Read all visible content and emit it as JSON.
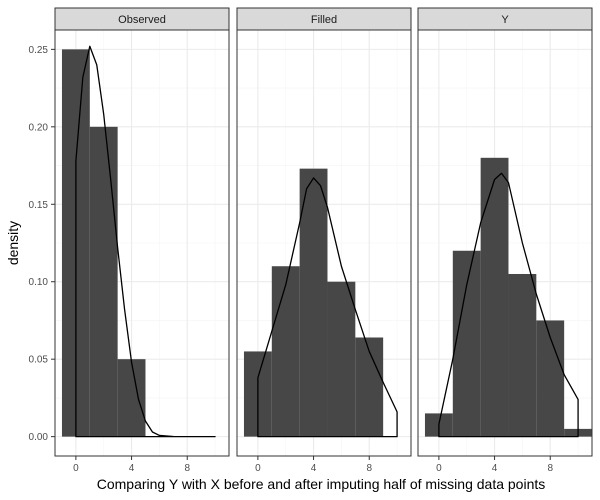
{
  "chart_data": {
    "type": "histogram",
    "title": "",
    "xlabel": "Comparing Y with X before and after imputing half of missing data points",
    "ylabel": "density",
    "xlim": [
      -1.5,
      11.0
    ],
    "ylim": [
      -0.0125,
      0.2625
    ],
    "x_ticks": [
      0,
      4,
      8
    ],
    "y_ticks": [
      0.0,
      0.05,
      0.1,
      0.15,
      0.2,
      0.25
    ],
    "y_tick_labels": [
      "0.00",
      "0.05",
      "0.10",
      "0.15",
      "0.20",
      "0.25"
    ],
    "grid": true,
    "bin_width": 2,
    "colors": {
      "bar": "#474747",
      "curve": "#000000",
      "strip": "#d9d9d9",
      "grid_major": "#ebebeb",
      "grid_minor": "#f5f5f5",
      "panel_border": "#333333"
    },
    "panels": [
      {
        "strip": "Observed",
        "bins": [
          {
            "center": 0,
            "density": 0.25
          },
          {
            "center": 2,
            "density": 0.2
          },
          {
            "center": 4,
            "density": 0.05
          }
        ],
        "density_x": [
          0,
          0.5,
          1,
          1.5,
          2,
          2.5,
          3,
          3.5,
          4,
          4.5,
          5,
          5.5,
          6,
          7,
          8,
          10
        ],
        "density_y": [
          0.178,
          0.232,
          0.252,
          0.24,
          0.208,
          0.166,
          0.122,
          0.082,
          0.048,
          0.024,
          0.01,
          0.003,
          0.0008,
          0.0001,
          0,
          0
        ]
      },
      {
        "strip": "Filled",
        "bins": [
          {
            "center": 0,
            "density": 0.055
          },
          {
            "center": 2,
            "density": 0.11
          },
          {
            "center": 4,
            "density": 0.173
          },
          {
            "center": 6,
            "density": 0.1
          },
          {
            "center": 8,
            "density": 0.064
          }
        ],
        "density_x": [
          0,
          1,
          2,
          3,
          3.5,
          4,
          4.5,
          5,
          6,
          7,
          8,
          9,
          10
        ],
        "density_y": [
          0.038,
          0.068,
          0.098,
          0.138,
          0.16,
          0.167,
          0.162,
          0.148,
          0.11,
          0.082,
          0.055,
          0.035,
          0.016
        ]
      },
      {
        "strip": "Y",
        "bins": [
          {
            "center": 0,
            "density": 0.015
          },
          {
            "center": 2,
            "density": 0.12
          },
          {
            "center": 4,
            "density": 0.18
          },
          {
            "center": 6,
            "density": 0.105
          },
          {
            "center": 8,
            "density": 0.075
          },
          {
            "center": 10,
            "density": 0.005
          }
        ],
        "density_x": [
          0,
          1,
          2,
          3,
          4,
          4.5,
          5,
          6,
          7,
          8,
          9,
          10
        ],
        "density_y": [
          0.008,
          0.05,
          0.098,
          0.138,
          0.166,
          0.17,
          0.164,
          0.125,
          0.092,
          0.064,
          0.04,
          0.024
        ]
      }
    ]
  }
}
